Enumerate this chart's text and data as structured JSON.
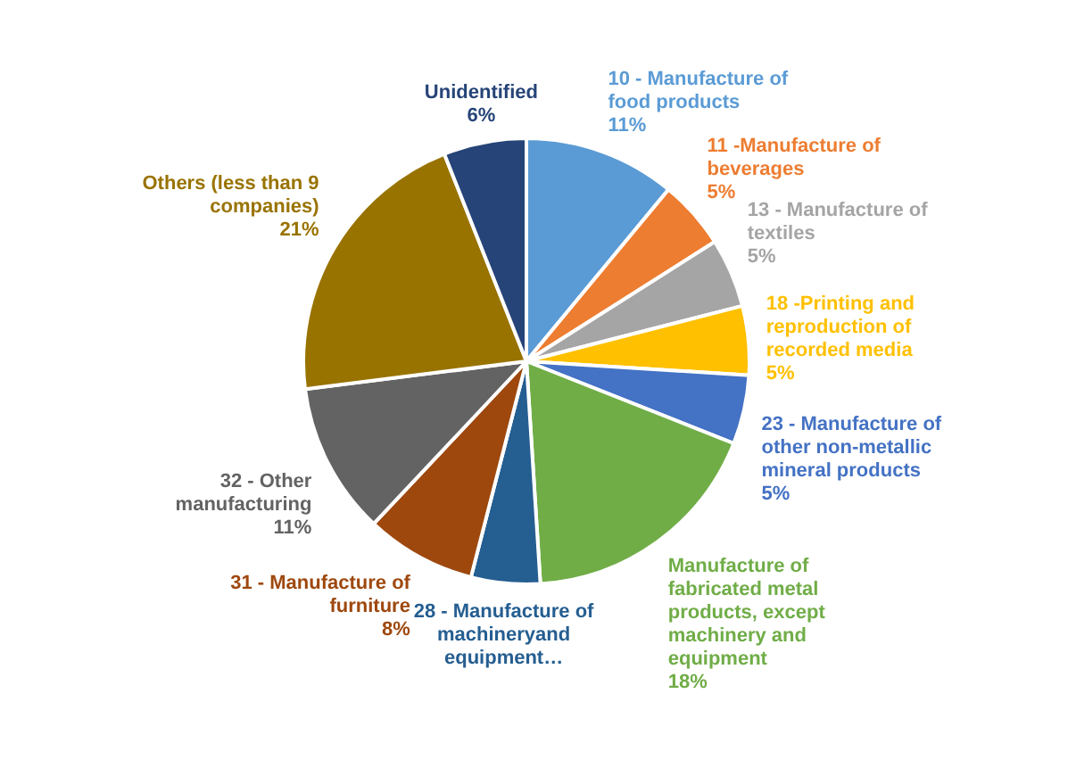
{
  "chart_data": {
    "type": "pie",
    "categories": [
      "10 - Manufacture of food products",
      "11 -Manufacture of beverages",
      "13 - Manufacture of textiles",
      "18 -Printing and reproduction of recorded media",
      "23 - Manufacture of other non-metallic mineral products",
      "Manufacture of fabricated metal products, except machinery and equipment",
      "28 - Manufacture of machineryand equipment…",
      "31 - Manufacture of furniture",
      "32 - Other manufacturing",
      "Others (less than 9 companies)",
      "Unidentified"
    ],
    "values": [
      11,
      5,
      5,
      5,
      5,
      18,
      5,
      8,
      11,
      21,
      6
    ],
    "value_labels": [
      "11%",
      "5%",
      "5%",
      "5%",
      "5%",
      "18%",
      null,
      "8%",
      "11%",
      "21%",
      "6%"
    ],
    "colors": [
      "#5b9bd5",
      "#ed7d31",
      "#a5a5a5",
      "#ffc000",
      "#4472c4",
      "#70ad47",
      "#255e91",
      "#9e480e",
      "#636363",
      "#997300",
      "#264478"
    ]
  }
}
